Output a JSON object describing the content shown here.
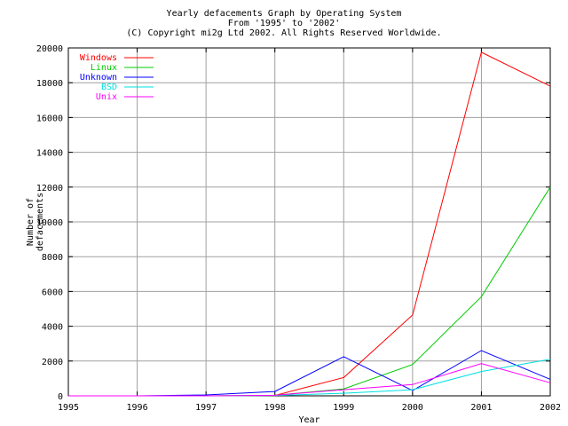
{
  "chart_data": {
    "type": "line",
    "title": [
      "Yearly defacements Graph by Operating System",
      "From '1995' to '2002'",
      "(C) Copyright mi2g Ltd 2002. All Rights Reserved Worldwide."
    ],
    "xlabel": "Year",
    "ylabel": [
      "Number of",
      "defacements"
    ],
    "x": [
      1995,
      1996,
      1997,
      1998,
      1999,
      2000,
      2001,
      2002
    ],
    "xlim": [
      1995,
      2002
    ],
    "ylim": [
      0,
      20000
    ],
    "xticks": [
      "1995",
      "1996",
      "1997",
      "1998",
      "1999",
      "2000",
      "2001",
      "2002"
    ],
    "yticks": [
      "0",
      "2000",
      "4000",
      "6000",
      "8000",
      "10000",
      "12000",
      "14000",
      "16000",
      "18000",
      "20000"
    ],
    "grid": true,
    "legend": "top-left",
    "series": [
      {
        "name": "Windows",
        "color": "#ff0000",
        "values": [
          0,
          0,
          0,
          20,
          1050,
          4650,
          19750,
          17800
        ]
      },
      {
        "name": "Linux",
        "color": "#00cc00",
        "values": [
          0,
          0,
          0,
          30,
          400,
          1800,
          5700,
          12000
        ]
      },
      {
        "name": "Unknown",
        "color": "#0000ff",
        "values": [
          0,
          0,
          50,
          250,
          2250,
          300,
          2600,
          950
        ]
      },
      {
        "name": "BSD",
        "color": "#00e0e0",
        "values": [
          0,
          0,
          0,
          20,
          150,
          350,
          1400,
          2100
        ]
      },
      {
        "name": "Unix",
        "color": "#ff00ff",
        "values": [
          0,
          0,
          0,
          30,
          350,
          650,
          1850,
          750
        ]
      }
    ]
  }
}
